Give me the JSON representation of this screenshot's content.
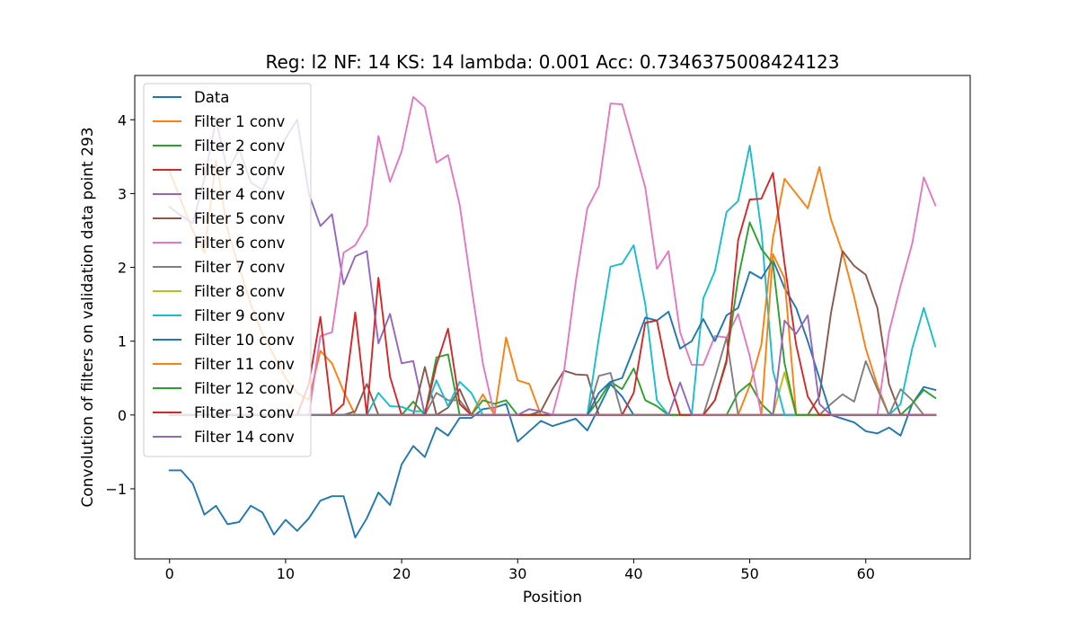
{
  "chart_data": {
    "type": "line",
    "title": "Reg: l2  NF: 14  KS: 14  lambda: 0.001 Acc: 0.7346375008424123",
    "xlabel": "Position",
    "ylabel": "Convolution of filters on validation data point 293",
    "xlim": [
      -3,
      69
    ],
    "ylim": [
      -1.95,
      4.6
    ],
    "xticks": [
      0,
      10,
      20,
      30,
      40,
      50,
      60
    ],
    "yticks": [
      -1,
      0,
      1,
      2,
      3,
      4
    ],
    "legend": "top-left",
    "grid": false,
    "series": [
      {
        "name": "Data",
        "color": "#1f77b4",
        "values": [
          -0.75,
          -0.75,
          -0.93,
          -1.35,
          -1.23,
          -1.48,
          -1.45,
          -1.23,
          -1.32,
          -1.62,
          -1.42,
          -1.57,
          -1.4,
          -1.16,
          -1.1,
          -1.1,
          -1.66,
          -1.4,
          -1.05,
          -1.22,
          -0.67,
          -0.42,
          -0.57,
          -0.17,
          -0.28,
          -0.04,
          -0.04,
          0.08,
          0.1,
          0.15,
          -0.36,
          -0.22,
          -0.08,
          -0.15,
          -0.1,
          -0.05,
          -0.21,
          0.1,
          0.42,
          0.25,
          0.0,
          0.0,
          0.0,
          0.0,
          0.0,
          0.0,
          0.0,
          0.0,
          0.0,
          0.0,
          0.0,
          0.0,
          0.0,
          0.0,
          0.0,
          0.0,
          0.0,
          0.0,
          -0.05,
          -0.1,
          -0.22,
          -0.25,
          -0.17,
          -0.28,
          0.15,
          0.38,
          0.34
        ]
      },
      {
        "name": "Filter 1 conv",
        "color": "#ff7f0e",
        "values": [
          3.3,
          2.9,
          2.5,
          2.2,
          3.45,
          2.5,
          2.0,
          1.5,
          1.1,
          0.8,
          0.5,
          0.3,
          0.2,
          0.87,
          0.7,
          0.32,
          0.0,
          0.0,
          0.0,
          0.0,
          0.0,
          0.0,
          0.0,
          0.0,
          0.0,
          0.0,
          0.0,
          0.28,
          0.0,
          1.05,
          0.47,
          0.42,
          0.0,
          0.0,
          0.0,
          0.0,
          0.0,
          0.0,
          0.0,
          0.0,
          0.0,
          0.0,
          0.0,
          0.0,
          0.0,
          0.0,
          0.0,
          0.0,
          0.0,
          0.0,
          0.4,
          0.95,
          2.4,
          3.2,
          3.0,
          2.8,
          3.36,
          2.65,
          2.2,
          1.6,
          0.9,
          0.4,
          0.0,
          0.0,
          0.0,
          0.0,
          0.0
        ]
      },
      {
        "name": "Filter 2 conv",
        "color": "#2ca02c",
        "values": [
          0,
          0,
          0,
          0,
          0,
          0,
          0,
          0,
          0,
          0,
          0,
          0,
          0,
          0,
          0,
          0,
          0,
          0,
          0,
          0,
          0,
          0.18,
          0,
          0.78,
          0.82,
          0,
          0,
          0.2,
          0.15,
          0.2,
          0,
          0,
          0,
          0,
          0,
          0,
          0,
          0.2,
          0.45,
          0.35,
          0.63,
          0.2,
          0.12,
          0,
          0,
          0,
          0,
          0,
          0,
          0.3,
          0.43,
          0.15,
          0,
          0,
          0,
          0,
          0,
          0,
          0,
          0,
          0,
          0,
          0,
          0,
          0,
          0,
          0
        ]
      },
      {
        "name": "Filter 3 conv",
        "color": "#d62728",
        "values": [
          0,
          0,
          0,
          0,
          0,
          0,
          0,
          0,
          0,
          0,
          0,
          0,
          0,
          0,
          0,
          0,
          0,
          0,
          0,
          0,
          0,
          0,
          0,
          0,
          0,
          0,
          0,
          0,
          0,
          0,
          0,
          0,
          0,
          0,
          0,
          0,
          0,
          0,
          0,
          0,
          0,
          0,
          0,
          0,
          0,
          0,
          0,
          0,
          0,
          0,
          0,
          0,
          0,
          0,
          0,
          0,
          0,
          0,
          0,
          0,
          0,
          0,
          0,
          0,
          0,
          0,
          0
        ]
      },
      {
        "name": "Filter 4 conv",
        "color": "#9467bd",
        "values": [
          2.82,
          2.7,
          2.6,
          3.2,
          4.0,
          3.3,
          3.6,
          3.15,
          3.05,
          3.4,
          3.75,
          4.0,
          3.0,
          2.56,
          2.72,
          1.77,
          2.15,
          2.22,
          0.97,
          1.37,
          0.7,
          0.73,
          0,
          0,
          0,
          0,
          0,
          0,
          0,
          0,
          0,
          0,
          0,
          0,
          0,
          0,
          0,
          0,
          0,
          0,
          0,
          0,
          0,
          0,
          0,
          0,
          0,
          0,
          0,
          0,
          0,
          0,
          0,
          0,
          0,
          0,
          0,
          0,
          0,
          0,
          0,
          0,
          0,
          0,
          0,
          0,
          0
        ]
      },
      {
        "name": "Filter 5 conv",
        "color": "#8c564b",
        "values": [
          0,
          0,
          0,
          0,
          0,
          0,
          0,
          0,
          0,
          0,
          0,
          0,
          0,
          0,
          0,
          0,
          0.05,
          0.42,
          0,
          0,
          0,
          0,
          0.65,
          0,
          0.1,
          0.35,
          0,
          0,
          0,
          0,
          0,
          0,
          0.05,
          0.35,
          0.6,
          0.55,
          0.54,
          0,
          0,
          0,
          0,
          0,
          0,
          0,
          0,
          0,
          0,
          0,
          0,
          0,
          0,
          0,
          0,
          0,
          0,
          0,
          0.25,
          1.38,
          2.22,
          2.02,
          1.9,
          1.45,
          0.42,
          0,
          0,
          0,
          0
        ]
      },
      {
        "name": "Filter 6 conv",
        "color": "#e377c2",
        "values": [
          0,
          0,
          0,
          0,
          0,
          0,
          0,
          0,
          0,
          0,
          0,
          0,
          0,
          1.07,
          1.12,
          2.2,
          2.3,
          2.57,
          3.78,
          3.16,
          3.57,
          4.31,
          4.17,
          3.42,
          3.52,
          2.85,
          1.75,
          0.7,
          0,
          0,
          0,
          0,
          0,
          0,
          0.6,
          1.8,
          2.8,
          3.1,
          4.22,
          4.21,
          3.65,
          3.08,
          1.98,
          2.22,
          1.12,
          0.68,
          0.68,
          1.07,
          1.05,
          1.37,
          0.8,
          0,
          0,
          0,
          0,
          0,
          0,
          0,
          0,
          0,
          0,
          0,
          1.12,
          1.75,
          2.32,
          3.22,
          2.84
        ]
      },
      {
        "name": "Filter 7 conv",
        "color": "#7f7f7f",
        "values": [
          0,
          0,
          0,
          0,
          0,
          0,
          0,
          0,
          0,
          0,
          0,
          0,
          0,
          0,
          0,
          0,
          0,
          0,
          0,
          0,
          0,
          0,
          0,
          0.3,
          0.2,
          0.2,
          0,
          0,
          0,
          0,
          0,
          0,
          0,
          0,
          0,
          0,
          0,
          0.53,
          0.57,
          0,
          0,
          0,
          0,
          0,
          0,
          0,
          0,
          0.5,
          1.05,
          0,
          0,
          0,
          0,
          0,
          0,
          0,
          0,
          0.15,
          0.28,
          0.18,
          0.73,
          0.35,
          0,
          0.35,
          0.2,
          0,
          0
        ]
      },
      {
        "name": "Filter 8 conv",
        "color": "#bcbd22",
        "values": [
          0,
          0,
          0,
          0,
          0,
          0,
          0,
          0,
          0,
          0,
          0,
          0,
          0,
          0,
          0,
          0,
          0,
          0,
          0,
          0,
          0,
          0,
          0,
          0,
          0,
          0,
          0,
          0,
          0,
          0,
          0,
          0,
          0,
          0,
          0,
          0,
          0,
          0,
          0,
          0,
          0,
          0,
          0,
          0,
          0,
          0,
          0,
          0,
          0,
          0,
          0,
          0,
          0,
          0.58,
          0,
          0,
          0,
          0,
          0,
          0,
          0,
          0,
          0,
          0,
          0,
          0,
          0
        ]
      },
      {
        "name": "Filter 9 conv",
        "color": "#17becf",
        "values": [
          0,
          0,
          0,
          0,
          0,
          0,
          0,
          0,
          0,
          0,
          0,
          0,
          0,
          0,
          0,
          0,
          0,
          0,
          0.3,
          0.12,
          0.11,
          0.05,
          0.05,
          0.47,
          0.12,
          0.45,
          0.3,
          0,
          0,
          0,
          0,
          0,
          0,
          0,
          0,
          0,
          0,
          1.05,
          2.01,
          2.05,
          2.3,
          1.5,
          0.2,
          0,
          0,
          0,
          1.58,
          1.95,
          2.75,
          2.9,
          3.65,
          2.5,
          0.6,
          0,
          0,
          0,
          0,
          0,
          0,
          0,
          0,
          0,
          0,
          0.15,
          0.9,
          1.45,
          0.93
        ]
      },
      {
        "name": "Filter 10 conv",
        "color": "#1f77b4",
        "values": [
          0,
          0,
          0,
          0,
          0,
          0,
          0,
          0,
          0,
          0,
          0,
          0,
          0,
          0,
          0,
          0,
          0,
          0,
          0,
          0,
          0,
          0,
          0,
          0,
          0,
          0,
          0,
          0,
          0,
          0,
          0,
          0,
          0,
          0,
          0,
          0,
          0,
          0.3,
          0.45,
          0.5,
          0.9,
          1.32,
          1.28,
          1.4,
          0.9,
          1.0,
          1.3,
          1.0,
          1.35,
          1.45,
          1.94,
          1.85,
          2.1,
          1.72,
          1.45,
          1.0,
          0.5,
          0,
          0,
          0,
          0,
          0,
          0,
          0,
          0,
          0,
          0
        ]
      },
      {
        "name": "Filter 11 conv",
        "color": "#ff7f0e",
        "values": [
          0,
          0,
          0,
          0,
          0,
          0,
          0,
          0,
          0,
          0,
          0,
          0,
          0,
          0,
          0,
          0,
          0,
          0,
          0,
          0,
          0,
          0,
          0,
          0,
          0,
          0,
          0,
          0,
          0,
          0,
          0,
          0,
          0,
          0,
          0,
          0,
          0,
          0,
          0,
          0,
          0,
          0,
          0,
          0,
          0,
          0,
          0,
          0,
          0,
          0,
          0,
          0,
          2.18,
          1.85,
          0,
          0,
          0,
          0,
          0,
          0,
          0,
          0,
          0,
          0,
          0,
          0,
          0
        ]
      },
      {
        "name": "Filter 12 conv",
        "color": "#2ca02c",
        "values": [
          0,
          0,
          0,
          0,
          0,
          0,
          0,
          0,
          0,
          0,
          0,
          0,
          0,
          0,
          0,
          0,
          0,
          0,
          0,
          0,
          0,
          0,
          0,
          0,
          0,
          0,
          0,
          0,
          0,
          0,
          0,
          0,
          0,
          0,
          0,
          0,
          0,
          0,
          0,
          0,
          0,
          0,
          0,
          0,
          0,
          0,
          0,
          0.2,
          0.75,
          1.85,
          2.61,
          2.25,
          2.05,
          0.7,
          0,
          0,
          0,
          0,
          0,
          0,
          0,
          0,
          0,
          0,
          0.15,
          0.34,
          0.23
        ]
      },
      {
        "name": "Filter 13 conv",
        "color": "#d62728",
        "values": [
          0,
          0,
          0,
          0,
          0,
          0,
          0,
          0,
          0,
          0,
          0,
          0,
          0.42,
          1.33,
          0,
          0.15,
          1.39,
          0,
          1.86,
          0.52,
          0,
          0,
          0,
          0.68,
          1.17,
          0.15,
          0,
          0,
          0,
          0,
          0,
          0,
          0,
          0,
          0,
          0,
          0,
          0,
          0,
          0,
          0.3,
          1.25,
          1.28,
          0.5,
          0,
          0,
          0,
          0.2,
          0.72,
          2.37,
          2.92,
          2.93,
          3.28,
          2.05,
          0.95,
          0.25,
          0,
          0,
          0,
          0,
          0,
          0,
          0,
          0,
          0,
          0,
          0
        ]
      },
      {
        "name": "Filter 14 conv",
        "color": "#9467bd",
        "values": [
          0,
          0,
          0,
          0,
          0,
          0,
          0,
          0,
          0,
          0,
          0,
          0,
          0,
          0,
          0,
          0,
          0,
          0,
          0,
          0,
          0,
          0,
          0,
          0,
          0,
          0,
          0,
          0,
          0,
          0,
          0,
          0.08,
          0.05,
          0,
          0,
          0,
          0,
          0,
          0,
          0,
          0,
          0,
          0,
          0,
          0.44,
          0,
          0,
          0,
          0,
          0,
          0,
          0,
          0,
          1.28,
          1.1,
          1.35,
          0.15,
          0,
          0,
          0,
          0,
          0,
          0,
          0,
          0,
          0,
          0
        ]
      }
    ]
  }
}
